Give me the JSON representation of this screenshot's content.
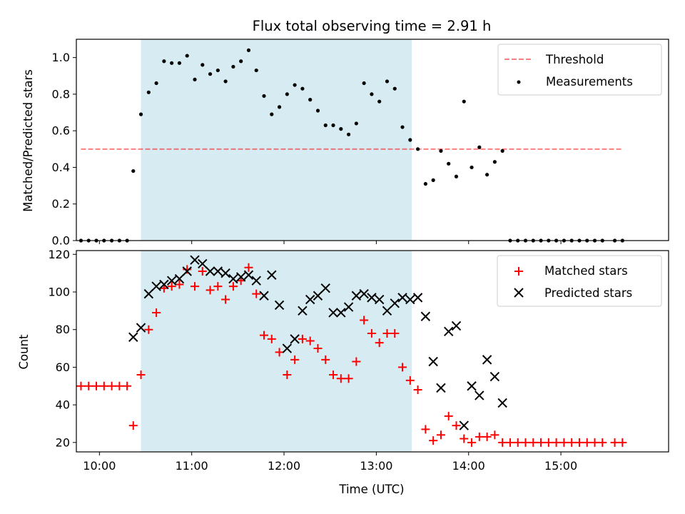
{
  "colors": {
    "shade": "#add8e6",
    "threshold": "#ff0000",
    "measurement": "#000000",
    "matched": "#ff0000",
    "predicted": "#000000"
  },
  "chart_data": [
    {
      "type": "scatter",
      "title": "Flux total observing time = 2.91 h",
      "xlabel": "",
      "ylabel": "Matched/Predicted stars",
      "xlim": [
        "09:45",
        "16:10"
      ],
      "ylim": [
        0,
        1.1
      ],
      "yticks": [
        "0.0",
        "0.2",
        "0.4",
        "0.6",
        "0.8",
        "1.0"
      ],
      "grid": false,
      "legend": {
        "position": "upper right",
        "entries": [
          "Threshold",
          "Measurements"
        ]
      },
      "shaded_interval": [
        "10:27",
        "13:23"
      ],
      "threshold": {
        "name": "Threshold",
        "value": 0.5,
        "x_range": [
          "09:48",
          "15:40"
        ],
        "style": "dashed"
      },
      "series": [
        {
          "name": "Measurements",
          "marker": "dot",
          "points": [
            [
              "09:48",
              0.0
            ],
            [
              "09:53",
              0.0
            ],
            [
              "09:58",
              0.0
            ],
            [
              "10:03",
              0.0
            ],
            [
              "10:08",
              0.0
            ],
            [
              "10:13",
              0.0
            ],
            [
              "10:18",
              0.0
            ],
            [
              "10:22",
              0.38
            ],
            [
              "10:27",
              0.69
            ],
            [
              "10:32",
              0.81
            ],
            [
              "10:37",
              0.86
            ],
            [
              "10:42",
              0.98
            ],
            [
              "10:47",
              0.97
            ],
            [
              "10:52",
              0.97
            ],
            [
              "10:57",
              1.01
            ],
            [
              "11:02",
              0.88
            ],
            [
              "11:07",
              0.96
            ],
            [
              "11:12",
              0.91
            ],
            [
              "11:17",
              0.93
            ],
            [
              "11:22",
              0.87
            ],
            [
              "11:27",
              0.95
            ],
            [
              "11:32",
              0.98
            ],
            [
              "11:37",
              1.04
            ],
            [
              "11:42",
              0.93
            ],
            [
              "11:47",
              0.79
            ],
            [
              "11:52",
              0.69
            ],
            [
              "11:57",
              0.73
            ],
            [
              "12:02",
              0.8
            ],
            [
              "12:07",
              0.85
            ],
            [
              "12:12",
              0.83
            ],
            [
              "12:17",
              0.77
            ],
            [
              "12:22",
              0.71
            ],
            [
              "12:27",
              0.63
            ],
            [
              "12:32",
              0.63
            ],
            [
              "12:37",
              0.61
            ],
            [
              "12:42",
              0.58
            ],
            [
              "12:47",
              0.64
            ],
            [
              "12:52",
              0.86
            ],
            [
              "12:57",
              0.8
            ],
            [
              "13:02",
              0.76
            ],
            [
              "13:07",
              0.87
            ],
            [
              "13:12",
              0.83
            ],
            [
              "13:17",
              0.62
            ],
            [
              "13:22",
              0.55
            ],
            [
              "13:27",
              0.5
            ],
            [
              "13:32",
              0.31
            ],
            [
              "13:37",
              0.33
            ],
            [
              "13:42",
              0.49
            ],
            [
              "13:47",
              0.42
            ],
            [
              "13:52",
              0.35
            ],
            [
              "13:57",
              0.76
            ],
            [
              "14:02",
              0.4
            ],
            [
              "14:07",
              0.51
            ],
            [
              "14:12",
              0.36
            ],
            [
              "14:17",
              0.43
            ],
            [
              "14:22",
              0.49
            ],
            [
              "14:27",
              0.0
            ],
            [
              "14:32",
              0.0
            ],
            [
              "14:37",
              0.0
            ],
            [
              "14:42",
              0.0
            ],
            [
              "14:47",
              0.0
            ],
            [
              "14:52",
              0.0
            ],
            [
              "14:57",
              0.0
            ],
            [
              "15:02",
              0.0
            ],
            [
              "15:07",
              0.0
            ],
            [
              "15:12",
              0.0
            ],
            [
              "15:17",
              0.0
            ],
            [
              "15:22",
              0.0
            ],
            [
              "15:27",
              0.0
            ],
            [
              "15:35",
              0.0
            ],
            [
              "15:40",
              0.0
            ]
          ]
        }
      ]
    },
    {
      "type": "scatter",
      "title": "",
      "xlabel": "Time (UTC)",
      "ylabel": "Count",
      "xlim": [
        "09:45",
        "16:10"
      ],
      "ylim": [
        15,
        122
      ],
      "xticks": [
        "10:00",
        "11:00",
        "12:00",
        "13:00",
        "14:00",
        "15:00"
      ],
      "yticks": [
        "20",
        "40",
        "60",
        "80",
        "100",
        "120"
      ],
      "grid": false,
      "legend": {
        "position": "upper right",
        "entries": [
          "Matched stars",
          "Predicted stars"
        ]
      },
      "shaded_interval": [
        "10:27",
        "13:23"
      ],
      "series": [
        {
          "name": "Matched stars",
          "marker": "plus",
          "points": [
            [
              "09:48",
              50
            ],
            [
              "09:53",
              50
            ],
            [
              "09:58",
              50
            ],
            [
              "10:03",
              50
            ],
            [
              "10:08",
              50
            ],
            [
              "10:13",
              50
            ],
            [
              "10:18",
              50
            ],
            [
              "10:22",
              29
            ],
            [
              "10:27",
              56
            ],
            [
              "10:32",
              80
            ],
            [
              "10:37",
              89
            ],
            [
              "10:42",
              102
            ],
            [
              "10:47",
              103
            ],
            [
              "10:52",
              104
            ],
            [
              "10:57",
              112
            ],
            [
              "11:02",
              103
            ],
            [
              "11:07",
              111
            ],
            [
              "11:12",
              101
            ],
            [
              "11:17",
              103
            ],
            [
              "11:22",
              96
            ],
            [
              "11:27",
              103
            ],
            [
              "11:32",
              106
            ],
            [
              "11:37",
              113
            ],
            [
              "11:42",
              99
            ],
            [
              "11:47",
              77
            ],
            [
              "11:52",
              75
            ],
            [
              "11:57",
              68
            ],
            [
              "12:02",
              56
            ],
            [
              "12:07",
              64
            ],
            [
              "12:12",
              75
            ],
            [
              "12:17",
              74
            ],
            [
              "12:22",
              70
            ],
            [
              "12:27",
              64
            ],
            [
              "12:32",
              56
            ],
            [
              "12:37",
              54
            ],
            [
              "12:42",
              54
            ],
            [
              "12:47",
              63
            ],
            [
              "12:52",
              85
            ],
            [
              "12:57",
              78
            ],
            [
              "13:02",
              73
            ],
            [
              "13:07",
              78
            ],
            [
              "13:12",
              78
            ],
            [
              "13:17",
              60
            ],
            [
              "13:22",
              53
            ],
            [
              "13:27",
              48
            ],
            [
              "13:32",
              27
            ],
            [
              "13:37",
              21
            ],
            [
              "13:42",
              24
            ],
            [
              "13:47",
              34
            ],
            [
              "13:52",
              29
            ],
            [
              "13:57",
              22
            ],
            [
              "14:02",
              20
            ],
            [
              "14:07",
              23
            ],
            [
              "14:12",
              23
            ],
            [
              "14:17",
              24
            ],
            [
              "14:22",
              20
            ],
            [
              "14:27",
              20
            ],
            [
              "14:32",
              20
            ],
            [
              "14:37",
              20
            ],
            [
              "14:42",
              20
            ],
            [
              "14:47",
              20
            ],
            [
              "14:52",
              20
            ],
            [
              "14:57",
              20
            ],
            [
              "15:02",
              20
            ],
            [
              "15:07",
              20
            ],
            [
              "15:12",
              20
            ],
            [
              "15:17",
              20
            ],
            [
              "15:22",
              20
            ],
            [
              "15:27",
              20
            ],
            [
              "15:35",
              20
            ],
            [
              "15:40",
              20
            ]
          ]
        },
        {
          "name": "Predicted stars",
          "marker": "x",
          "points": [
            [
              "10:22",
              76
            ],
            [
              "10:27",
              81
            ],
            [
              "10:32",
              99
            ],
            [
              "10:37",
              103
            ],
            [
              "10:42",
              104
            ],
            [
              "10:47",
              106
            ],
            [
              "10:52",
              107
            ],
            [
              "10:57",
              111
            ],
            [
              "11:02",
              117
            ],
            [
              "11:07",
              115
            ],
            [
              "11:12",
              111
            ],
            [
              "11:17",
              111
            ],
            [
              "11:22",
              110
            ],
            [
              "11:27",
              107
            ],
            [
              "11:32",
              108
            ],
            [
              "11:37",
              109
            ],
            [
              "11:42",
              106
            ],
            [
              "11:47",
              98
            ],
            [
              "11:52",
              109
            ],
            [
              "11:57",
              93
            ],
            [
              "12:02",
              70
            ],
            [
              "12:07",
              75
            ],
            [
              "12:12",
              90
            ],
            [
              "12:17",
              96
            ],
            [
              "12:22",
              98
            ],
            [
              "12:27",
              102
            ],
            [
              "12:32",
              89
            ],
            [
              "12:37",
              89
            ],
            [
              "12:42",
              92
            ],
            [
              "12:47",
              98
            ],
            [
              "12:52",
              99
            ],
            [
              "12:57",
              97
            ],
            [
              "13:02",
              96
            ],
            [
              "13:07",
              90
            ],
            [
              "13:12",
              94
            ],
            [
              "13:17",
              97
            ],
            [
              "13:22",
              96
            ],
            [
              "13:27",
              97
            ],
            [
              "13:32",
              87
            ],
            [
              "13:37",
              63
            ],
            [
              "13:42",
              49
            ],
            [
              "13:47",
              79
            ],
            [
              "13:52",
              82
            ],
            [
              "13:57",
              29
            ],
            [
              "14:02",
              50
            ],
            [
              "14:07",
              45
            ],
            [
              "14:12",
              64
            ],
            [
              "14:17",
              55
            ],
            [
              "14:22",
              41
            ]
          ]
        }
      ]
    }
  ]
}
